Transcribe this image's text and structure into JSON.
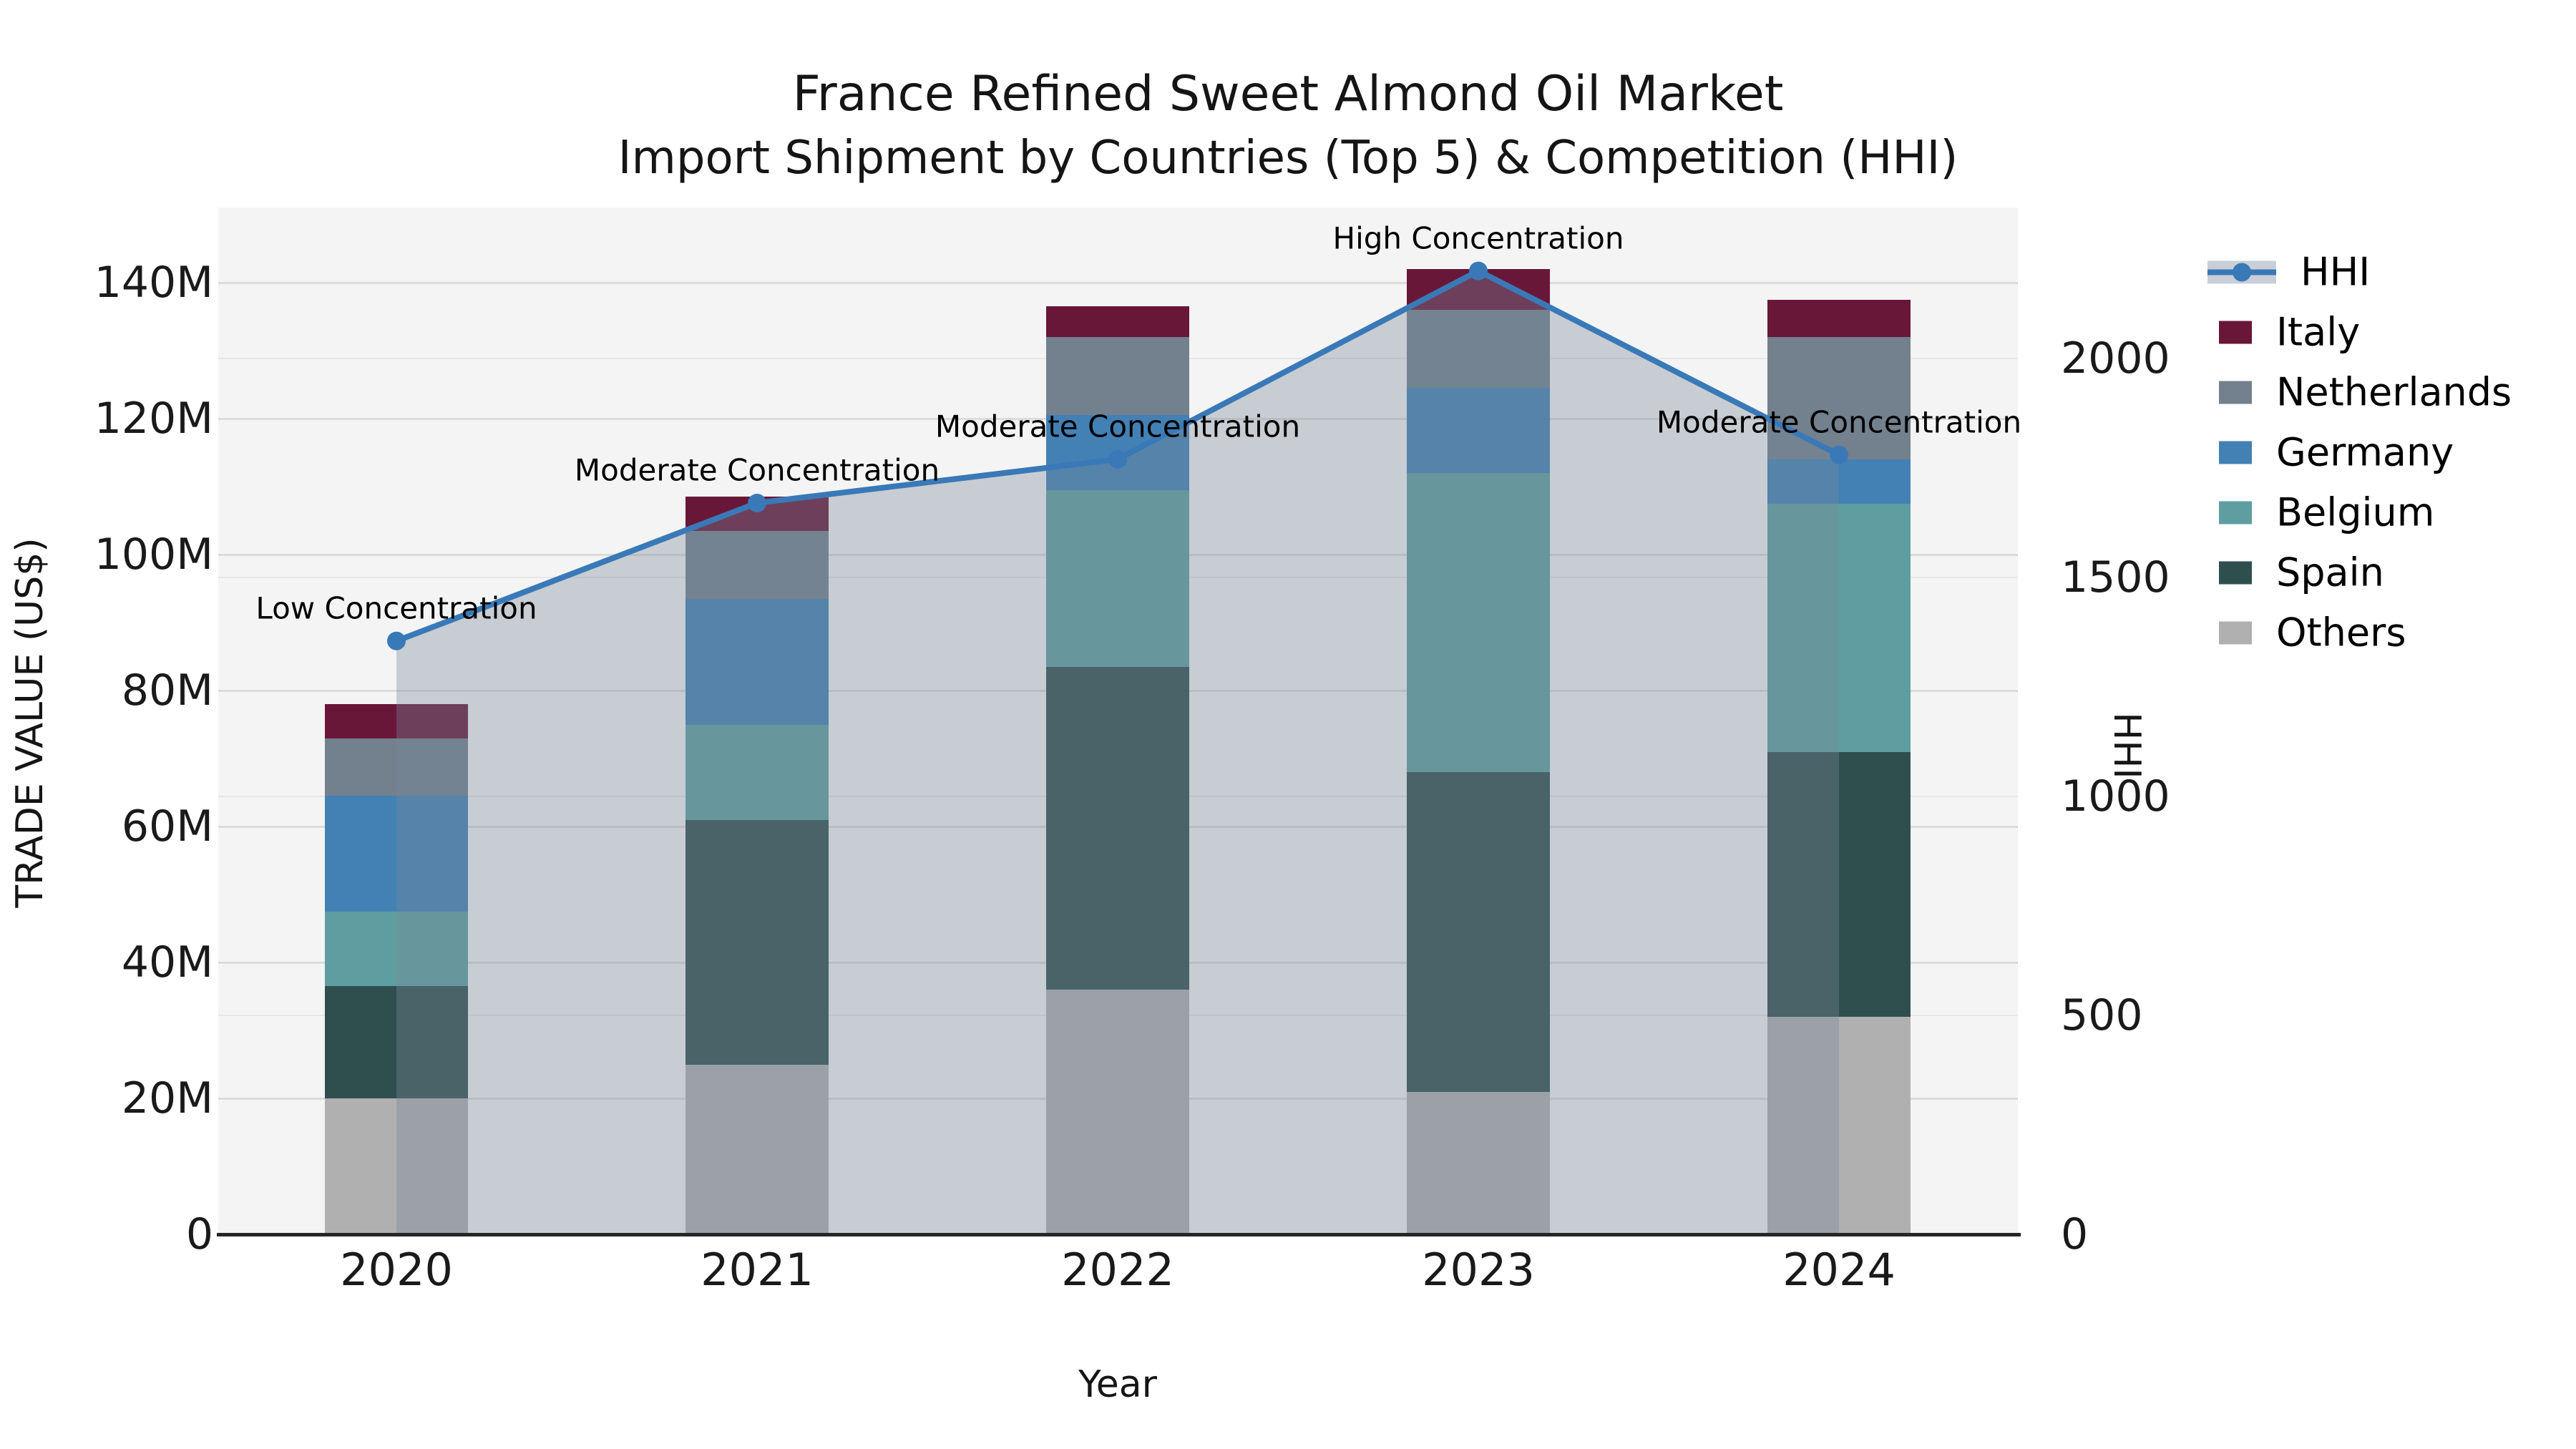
{
  "title": {
    "line1": "France Refined Sweet Almond Oil Market",
    "line2": "Import Shipment by Countries (Top 5) & Competition (HHI)"
  },
  "axis": {
    "y_left": {
      "label": "TRADE VALUE (US$)",
      "ticks": [
        {
          "label": "0",
          "value": 0
        },
        {
          "label": "20M",
          "value": 20
        },
        {
          "label": "40M",
          "value": 40
        },
        {
          "label": "60M",
          "value": 60
        },
        {
          "label": "80M",
          "value": 80
        },
        {
          "label": "100M",
          "value": 100
        },
        {
          "label": "120M",
          "value": 120
        },
        {
          "label": "140M",
          "value": 140
        }
      ]
    },
    "y_right": {
      "label": "HHI",
      "ticks": [
        {
          "label": "0",
          "value": 0
        },
        {
          "label": "500",
          "value": 500
        },
        {
          "label": "1000",
          "value": 1000
        },
        {
          "label": "1500",
          "value": 1500
        },
        {
          "label": "2000",
          "value": 2000
        }
      ]
    },
    "x": {
      "label": "Year"
    }
  },
  "legend": {
    "items": [
      {
        "id": "hhi",
        "label": "HHI"
      },
      {
        "id": "italy",
        "label": "Italy"
      },
      {
        "id": "netherlands",
        "label": "Netherlands"
      },
      {
        "id": "germany",
        "label": "Germany"
      },
      {
        "id": "belgium",
        "label": "Belgium"
      },
      {
        "id": "spain",
        "label": "Spain"
      },
      {
        "id": "others",
        "label": "Others"
      }
    ]
  },
  "colors": {
    "hhi": "#3a79b7",
    "area_fill": "rgba(119,136,153,0.36)",
    "italy": "#691738",
    "netherlands": "#73808e",
    "germany": "#4381b5",
    "belgium": "#5f9ea0",
    "spain": "#2f4f4f",
    "others": "#b0b0b0",
    "plot_bg": "#f4f4f4",
    "axis_line": "#262626"
  },
  "chart_data": {
    "type": "bar",
    "subtype": "stacked-bars-with-line-area-overlay",
    "title": "France Refined Sweet Almond Oil Market — Import Shipment by Countries (Top 5) & Competition (HHI)",
    "categories": [
      "2020",
      "2021",
      "2022",
      "2023",
      "2024"
    ],
    "bar_value_unit": "Million US$ (trade value, left axis)",
    "stack_order_bottom_to_top": [
      "Others",
      "Spain",
      "Belgium",
      "Germany",
      "Netherlands",
      "Italy"
    ],
    "series": [
      {
        "name": "Others",
        "values": [
          20,
          25,
          36,
          21,
          32
        ]
      },
      {
        "name": "Spain",
        "values": [
          16.5,
          36,
          47.5,
          47,
          39
        ]
      },
      {
        "name": "Belgium",
        "values": [
          11,
          14,
          26,
          44,
          36.5
        ]
      },
      {
        "name": "Germany",
        "values": [
          17,
          18.5,
          11,
          12.5,
          6.5
        ]
      },
      {
        "name": "Netherlands",
        "values": [
          8.5,
          10,
          11.5,
          11.5,
          18
        ]
      },
      {
        "name": "Italy",
        "values": [
          5,
          5,
          4.5,
          6,
          5.5
        ]
      }
    ],
    "line_series": {
      "name": "HHI",
      "axis": "right",
      "values": [
        1355,
        1670,
        1770,
        2200,
        1780
      ],
      "area_fill_to_zero": true
    },
    "annotations": [
      {
        "x": "2020",
        "text": "Low Concentration"
      },
      {
        "x": "2021",
        "text": "Moderate Concentration"
      },
      {
        "x": "2022",
        "text": "Moderate Concentration"
      },
      {
        "x": "2023",
        "text": "High Concentration"
      },
      {
        "x": "2024",
        "text": "Moderate Concentration"
      }
    ],
    "xlabel": "Year",
    "ylabel_left": "TRADE VALUE (US$)",
    "ylabel_right": "HHI",
    "ylim_left": [
      0,
      151
    ],
    "ylim_right": [
      0,
      2345
    ],
    "grid": true,
    "legend_position": "right"
  }
}
